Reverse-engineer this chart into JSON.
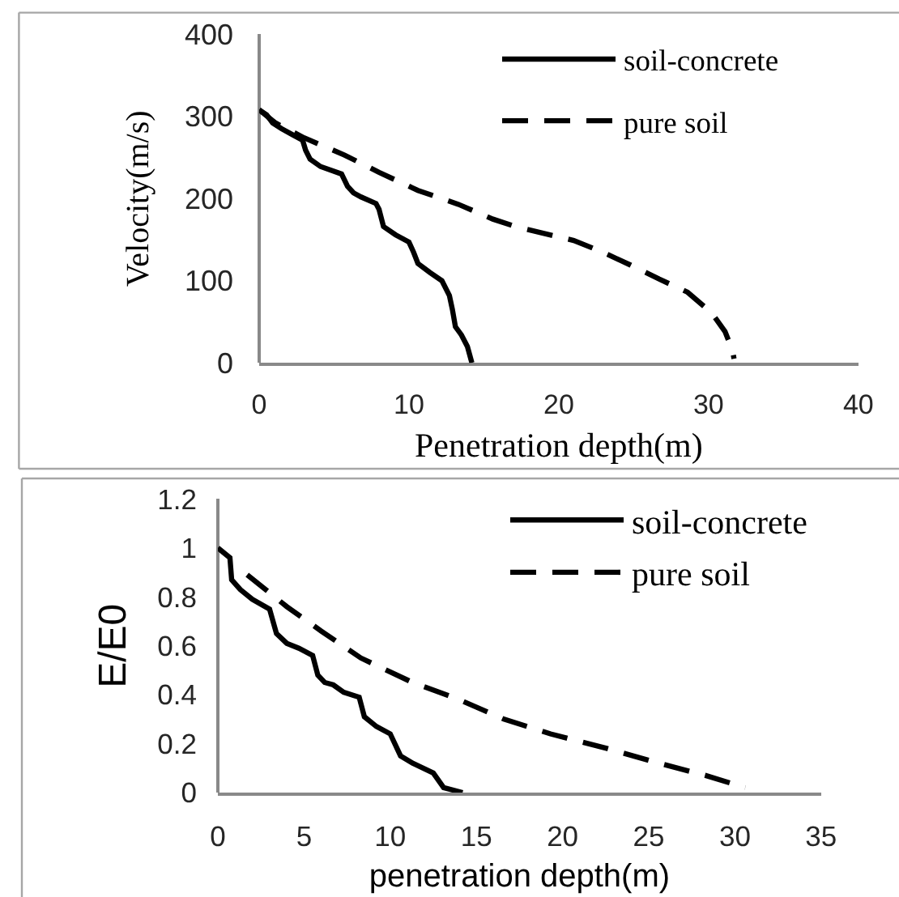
{
  "chart_data": [
    {
      "type": "line",
      "xlabel": "Penetration depth(m)",
      "ylabel": "Velocity(m/s)",
      "xlim": [
        0,
        40
      ],
      "ylim": [
        0,
        400
      ],
      "xticks": [
        0,
        10,
        20,
        30,
        40
      ],
      "yticks": [
        0,
        100,
        200,
        300,
        400
      ],
      "legend": "top right",
      "series": [
        {
          "name": "soil-concrete",
          "color": "#000000",
          "line_style": "solid",
          "x": [
            0,
            0.5,
            0.9,
            1.5,
            2.2,
            2.9,
            3.1,
            3.4,
            4.1,
            5.5,
            5.9,
            6.3,
            6.8,
            7.8,
            8.0,
            8.3,
            9.1,
            10.0,
            10.3,
            10.6,
            11.4,
            12.2,
            12.7,
            12.9,
            13.1,
            13.5,
            13.9,
            14.2
          ],
          "values": [
            308,
            302,
            292,
            285,
            278,
            271,
            259,
            248,
            239,
            230,
            215,
            207,
            202,
            194,
            187,
            166,
            156,
            147,
            135,
            121,
            110,
            100,
            82,
            65,
            44,
            34,
            20,
            0
          ]
        },
        {
          "name": "pure soil",
          "color": "#000000",
          "line_style": "dashed",
          "x": [
            0,
            1.1,
            3.0,
            5.7,
            8.0,
            10.6,
            13.3,
            15.6,
            17.1,
            21.0,
            22.9,
            24.8,
            26.7,
            28.6,
            30.2,
            31.1,
            31.6,
            31.7
          ],
          "values": [
            308,
            292,
            274,
            253,
            232,
            210,
            193,
            175,
            166,
            149,
            135,
            119,
            102,
            86,
            61,
            38,
            15,
            5
          ]
        }
      ]
    },
    {
      "type": "line",
      "xlabel": "penetration depth(m)",
      "ylabel": "E/E0",
      "xlim": [
        0,
        35
      ],
      "ylim": [
        0,
        1.2
      ],
      "xticks": [
        0,
        5,
        10,
        15,
        20,
        25,
        30,
        35
      ],
      "yticks": [
        0,
        0.2,
        0.4,
        0.6,
        0.8,
        1,
        1.2
      ],
      "legend": "top right",
      "series": [
        {
          "name": "soil-concrete",
          "color": "#000000",
          "line_style": "solid",
          "x": [
            0,
            0.7,
            0.8,
            1.3,
            2.0,
            3.0,
            3.4,
            4.0,
            4.7,
            5.5,
            5.8,
            6.2,
            6.7,
            7.3,
            8.2,
            8.5,
            9.2,
            10.0,
            10.6,
            11.3,
            12.5,
            13.1,
            14.2
          ],
          "values": [
            1.0,
            0.96,
            0.87,
            0.83,
            0.79,
            0.75,
            0.65,
            0.61,
            0.59,
            0.56,
            0.48,
            0.45,
            0.44,
            0.41,
            0.39,
            0.31,
            0.27,
            0.24,
            0.15,
            0.12,
            0.08,
            0.02,
            0.0
          ]
        },
        {
          "name": "pure soil",
          "color": "#000000",
          "line_style": "dashed",
          "x": [
            1.7,
            4.0,
            6.0,
            8.3,
            11.3,
            14.0,
            16.6,
            19.3,
            22.6,
            25.6,
            28.3,
            30.6
          ],
          "values": [
            0.89,
            0.76,
            0.66,
            0.55,
            0.45,
            0.38,
            0.3,
            0.24,
            0.18,
            0.12,
            0.07,
            0.02
          ]
        }
      ]
    }
  ]
}
